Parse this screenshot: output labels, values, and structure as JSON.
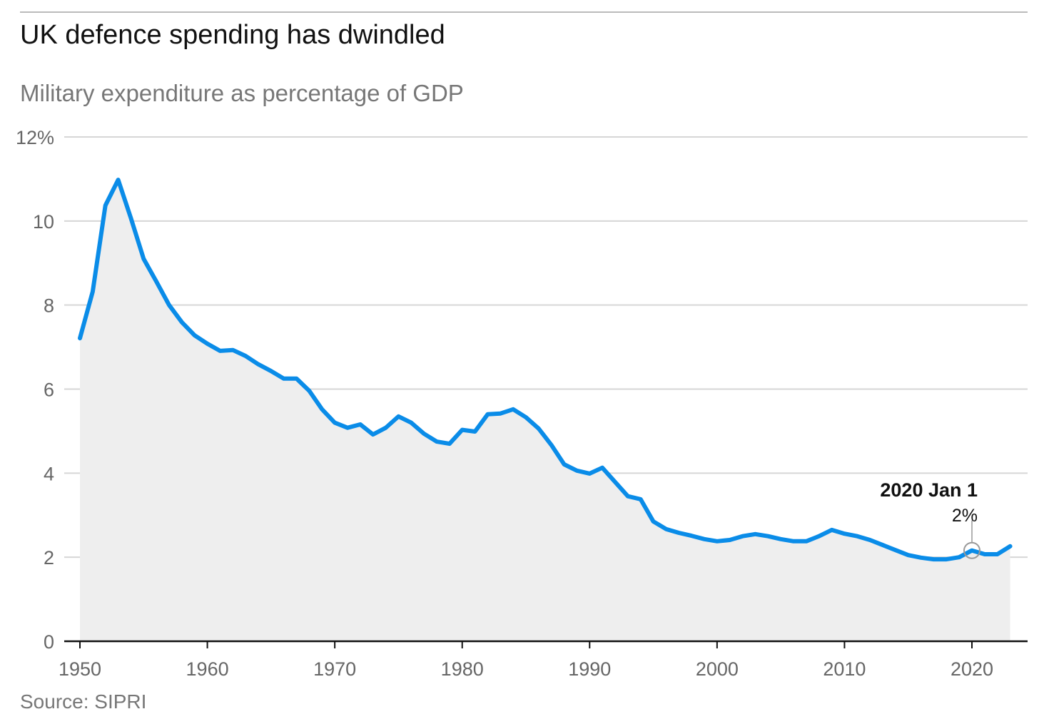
{
  "title": "UK defence spending has dwindled",
  "subtitle": "Military expenditure as percentage of GDP",
  "source": "Source: SIPRI",
  "colors": {
    "line": "#0a8ce8",
    "area": "#eeeeee",
    "grid": "#d6d6d6"
  },
  "chart_data": {
    "type": "area",
    "title": "UK defence spending has dwindled",
    "subtitle": "Military expenditure as percentage of GDP",
    "xlabel": "",
    "ylabel": "",
    "xlim": [
      1950,
      2023
    ],
    "ylim": [
      0,
      12
    ],
    "grid": true,
    "x_ticks": [
      1950,
      1960,
      1970,
      1980,
      1990,
      2000,
      2010,
      2020
    ],
    "x_tick_labels": [
      "1950",
      "1960",
      "1970",
      "1980",
      "1990",
      "2000",
      "2010",
      "2020"
    ],
    "y_ticks": [
      0,
      2,
      4,
      6,
      8,
      10,
      12
    ],
    "y_tick_labels": [
      "0",
      "2",
      "4",
      "6",
      "8",
      "10",
      "12%"
    ],
    "series": [
      {
        "name": "Military expenditure (% of GDP)",
        "x": [
          1950,
          1951,
          1952,
          1953,
          1954,
          1955,
          1956,
          1957,
          1958,
          1959,
          1960,
          1961,
          1962,
          1963,
          1964,
          1965,
          1966,
          1967,
          1968,
          1969,
          1970,
          1971,
          1972,
          1973,
          1974,
          1975,
          1976,
          1977,
          1978,
          1979,
          1980,
          1981,
          1982,
          1983,
          1984,
          1985,
          1986,
          1987,
          1988,
          1989,
          1990,
          1991,
          1992,
          1993,
          1994,
          1995,
          1996,
          1997,
          1998,
          1999,
          2000,
          2001,
          2002,
          2003,
          2004,
          2005,
          2006,
          2007,
          2008,
          2009,
          2010,
          2011,
          2012,
          2013,
          2014,
          2015,
          2016,
          2017,
          2018,
          2019,
          2020,
          2021,
          2022,
          2023
        ],
        "values": [
          7.21,
          8.32,
          10.37,
          10.98,
          10.07,
          9.1,
          8.56,
          8.0,
          7.59,
          7.28,
          7.08,
          6.91,
          6.93,
          6.79,
          6.59,
          6.43,
          6.25,
          6.25,
          5.96,
          5.52,
          5.2,
          5.08,
          5.16,
          4.92,
          5.08,
          5.35,
          5.2,
          4.94,
          4.75,
          4.7,
          5.03,
          4.99,
          5.4,
          5.42,
          5.52,
          5.33,
          5.06,
          4.67,
          4.21,
          4.06,
          3.99,
          4.13,
          3.79,
          3.45,
          3.38,
          2.85,
          2.67,
          2.58,
          2.51,
          2.43,
          2.38,
          2.41,
          2.5,
          2.55,
          2.5,
          2.43,
          2.38,
          2.38,
          2.5,
          2.65,
          2.56,
          2.5,
          2.41,
          2.29,
          2.17,
          2.05,
          1.99,
          1.95,
          1.95,
          2.0,
          2.16,
          2.07,
          2.07,
          2.26
        ]
      }
    ],
    "annotation": {
      "x": 2020,
      "y": 2.16,
      "label": "2020 Jan 1",
      "value_label": "2%"
    }
  }
}
